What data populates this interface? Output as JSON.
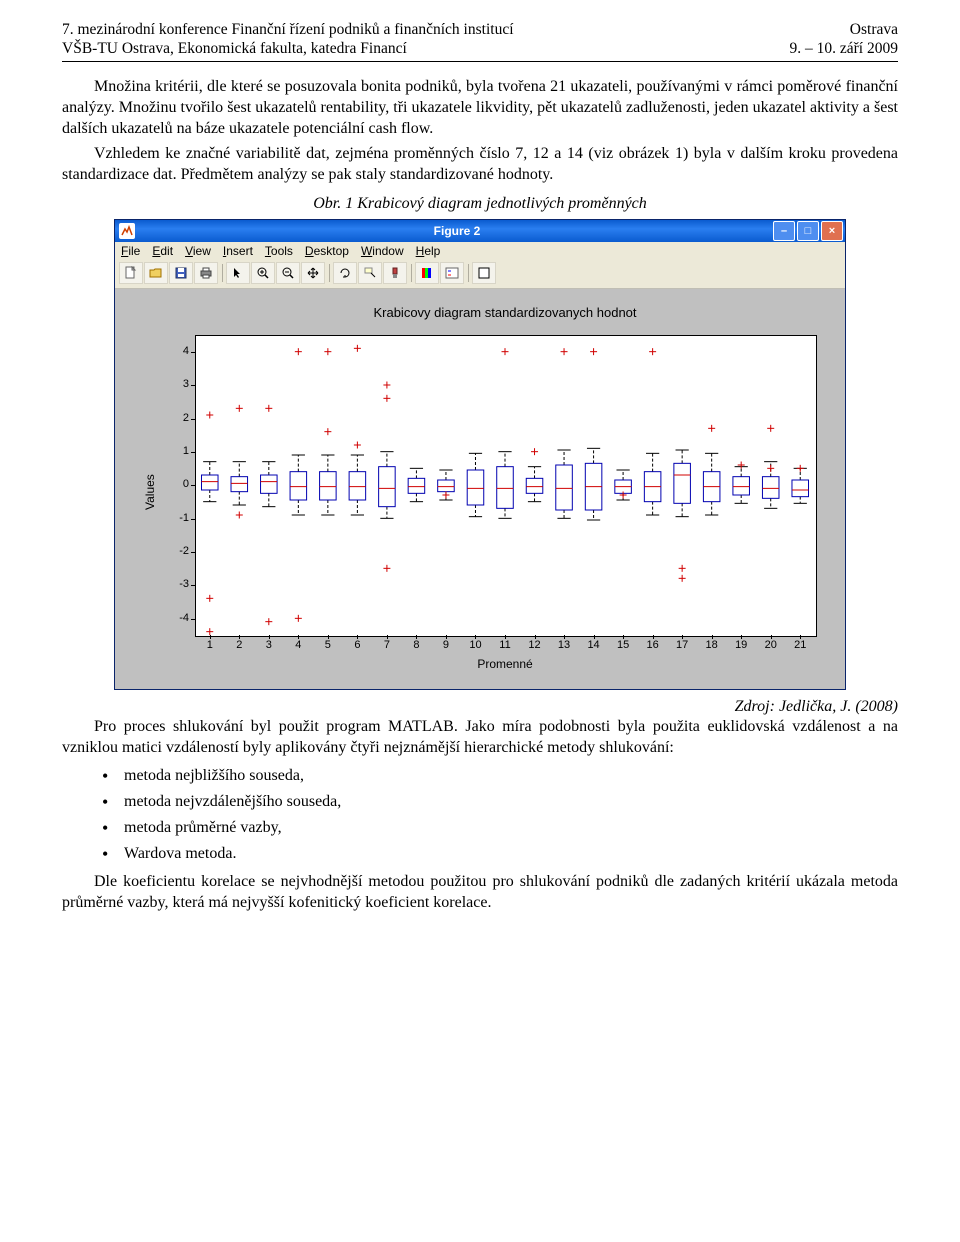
{
  "header": {
    "left1": "7. mezinárodní konference Finanční řízení podniků a finančních institucí",
    "left2": "VŠB-TU Ostrava, Ekonomická fakulta, katedra Financí",
    "right1": "Ostrava",
    "right2": "9. – 10. září 2009"
  },
  "para1": "Množina kritérii, dle které se posuzovala bonita podniků, byla tvořena 21 ukazateli, používanými v rámci poměrové finanční analýzy. Množinu tvořilo šest ukazatelů rentability, tři ukazatele likvidity, pět ukazatelů zadluženosti, jeden ukazatel aktivity a šest dalších ukazatelů na báze ukazatele potenciální cash flow.",
  "para2": "Vzhledem ke značné variabilitě dat, zejména proměnných číslo 7, 12 a 14 (viz obrázek 1) byla v dalším kroku provedena standardizace dat. Předmětem analýzy se pak staly standardizované hodnoty.",
  "fig_caption": "Obr. 1 Krabicový diagram jednotlivých proměnných",
  "figwin": {
    "title": "Figure 2",
    "menus": [
      "File",
      "Edit",
      "View",
      "Insert",
      "Tools",
      "Desktop",
      "Window",
      "Help"
    ],
    "toolbar_icons": [
      "new",
      "open",
      "save",
      "print",
      "sep",
      "arrow",
      "zoom-in",
      "zoom-out",
      "pan",
      "sep",
      "rotate",
      "data-cursor",
      "brush",
      "sep",
      "colorbar",
      "legend",
      "sep",
      "axes"
    ]
  },
  "chart": {
    "type": "boxplot",
    "title": "Krabicovy diagram standardizovanych hodnot",
    "xlabel": "Promenné",
    "ylabel": "Values",
    "background": "#ffffff",
    "panel_bg": "#c0c0c0",
    "title_fontsize": 13,
    "label_fontsize": 12,
    "tick_fontsize": 11,
    "box_edge_color": "#0000b0",
    "median_color": "#d00000",
    "whisker_color": "#000000",
    "outlier_marker": "+",
    "outlier_color": "#d00000",
    "xlim": [
      0.5,
      21.5
    ],
    "ylim": [
      -4.5,
      4.5
    ],
    "yticks": [
      -4,
      -3,
      -2,
      -1,
      0,
      1,
      2,
      3,
      4
    ],
    "x_categories": [
      1,
      2,
      3,
      4,
      5,
      6,
      7,
      8,
      9,
      10,
      11,
      12,
      13,
      14,
      15,
      16,
      17,
      18,
      19,
      20,
      21
    ],
    "series": [
      {
        "x": 1,
        "q1": -0.15,
        "med": 0.1,
        "q3": 0.3,
        "wl": -0.5,
        "wh": 0.7,
        "out": [
          -4.4,
          -3.4,
          2.1
        ]
      },
      {
        "x": 2,
        "q1": -0.2,
        "med": 0.05,
        "q3": 0.25,
        "wl": -0.6,
        "wh": 0.7,
        "out": [
          -0.9,
          2.3
        ]
      },
      {
        "x": 3,
        "q1": -0.25,
        "med": 0.1,
        "q3": 0.3,
        "wl": -0.65,
        "wh": 0.7,
        "out": [
          -4.1,
          2.3
        ]
      },
      {
        "x": 4,
        "q1": -0.45,
        "med": -0.05,
        "q3": 0.4,
        "wl": -0.9,
        "wh": 0.9,
        "out": [
          -4.0,
          4.0
        ]
      },
      {
        "x": 5,
        "q1": -0.45,
        "med": -0.05,
        "q3": 0.4,
        "wl": -0.9,
        "wh": 0.9,
        "out": [
          1.6,
          4.0
        ]
      },
      {
        "x": 6,
        "q1": -0.45,
        "med": -0.05,
        "q3": 0.4,
        "wl": -0.9,
        "wh": 0.9,
        "out": [
          1.2,
          4.1
        ]
      },
      {
        "x": 7,
        "q1": -0.65,
        "med": -0.1,
        "q3": 0.55,
        "wl": -1.0,
        "wh": 1.0,
        "out": [
          -2.5,
          2.6,
          3.0
        ]
      },
      {
        "x": 8,
        "q1": -0.25,
        "med": -0.05,
        "q3": 0.2,
        "wl": -0.5,
        "wh": 0.5,
        "out": []
      },
      {
        "x": 9,
        "q1": -0.2,
        "med": -0.05,
        "q3": 0.15,
        "wl": -0.45,
        "wh": 0.45,
        "out": [
          -0.3
        ]
      },
      {
        "x": 10,
        "q1": -0.6,
        "med": -0.1,
        "q3": 0.45,
        "wl": -0.95,
        "wh": 0.95,
        "out": []
      },
      {
        "x": 11,
        "q1": -0.7,
        "med": -0.1,
        "q3": 0.55,
        "wl": -1.0,
        "wh": 1.0,
        "out": [
          4.0
        ]
      },
      {
        "x": 12,
        "q1": -0.25,
        "med": -0.05,
        "q3": 0.2,
        "wl": -0.5,
        "wh": 0.55,
        "out": [
          1.0
        ]
      },
      {
        "x": 13,
        "q1": -0.75,
        "med": -0.1,
        "q3": 0.6,
        "wl": -1.0,
        "wh": 1.05,
        "out": [
          4.0
        ]
      },
      {
        "x": 14,
        "q1": -0.75,
        "med": -0.05,
        "q3": 0.65,
        "wl": -1.05,
        "wh": 1.1,
        "out": [
          4.0
        ]
      },
      {
        "x": 15,
        "q1": -0.25,
        "med": -0.05,
        "q3": 0.15,
        "wl": -0.45,
        "wh": 0.45,
        "out": [
          -0.3
        ]
      },
      {
        "x": 16,
        "q1": -0.5,
        "med": -0.05,
        "q3": 0.4,
        "wl": -0.9,
        "wh": 0.95,
        "out": [
          4.0
        ]
      },
      {
        "x": 17,
        "q1": -0.55,
        "med": 0.3,
        "q3": 0.65,
        "wl": -0.95,
        "wh": 1.05,
        "out": [
          -2.8,
          -2.5
        ]
      },
      {
        "x": 18,
        "q1": -0.5,
        "med": -0.05,
        "q3": 0.4,
        "wl": -0.9,
        "wh": 0.95,
        "out": [
          1.7
        ]
      },
      {
        "x": 19,
        "q1": -0.3,
        "med": -0.05,
        "q3": 0.25,
        "wl": -0.55,
        "wh": 0.55,
        "out": [
          0.6
        ]
      },
      {
        "x": 20,
        "q1": -0.4,
        "med": -0.1,
        "q3": 0.25,
        "wl": -0.7,
        "wh": 0.7,
        "out": [
          0.5,
          1.7
        ]
      },
      {
        "x": 21,
        "q1": -0.35,
        "med": -0.15,
        "q3": 0.15,
        "wl": -0.55,
        "wh": 0.5,
        "out": [
          0.5
        ]
      }
    ]
  },
  "source": "Zdroj: Jedlička, J. (2008)",
  "para3": "Pro proces shlukování byl použit program MATLAB. Jako míra podobnosti byla použita euklidovská vzdálenost a na vzniklou matici vzdáleností byly aplikovány čtyři nejznámější hierarchické metody shlukování:",
  "bullets": [
    "metoda nejbližšího souseda,",
    "metoda nejvzdálenějšího souseda,",
    "metoda průměrné vazby,",
    "Wardova metoda."
  ],
  "para4": "Dle koeficientu korelace se nejvhodnější metodou použitou pro shlukování podniků dle zadaných kritérií ukázala metoda průměrné vazby, která má nejvyšší kofenitický koeficient korelace."
}
